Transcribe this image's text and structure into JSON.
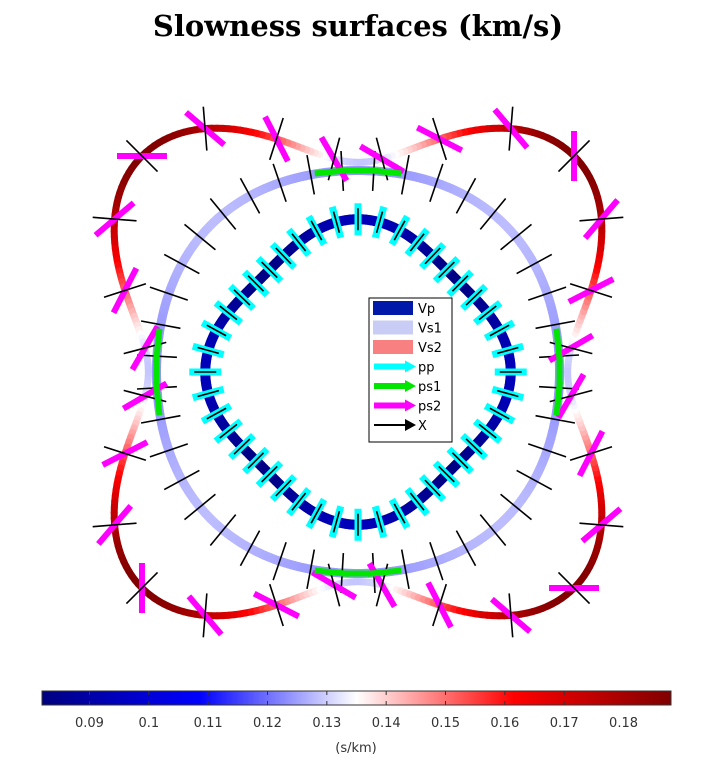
{
  "chart_data": {
    "type": "polar-slowness-surfaces",
    "title": "Slowness surfaces (km/s)",
    "series": [
      {
        "name": "Vp",
        "legend_color": "#0019a8"
      },
      {
        "name": "Vs1",
        "legend_color": "#c9cdf6"
      },
      {
        "name": "Vs2",
        "legend_color": "#f98080"
      },
      {
        "name": "pp",
        "legend_color": "#00ffff"
      },
      {
        "name": "ps1",
        "legend_color": "#00e600"
      },
      {
        "name": "ps2",
        "legend_color": "#ff00ff"
      },
      {
        "name": "X",
        "legend_color": "#000000"
      }
    ],
    "colorbar": {
      "label": "(s/km)",
      "range": [
        0.082,
        0.188
      ],
      "ticks": [
        0.09,
        0.1,
        0.11,
        0.12,
        0.13,
        0.14,
        0.15,
        0.16,
        0.17,
        0.18
      ],
      "tick_labels": [
        "0.09",
        "0.1",
        "0.11",
        "0.12",
        "0.13",
        "0.14",
        "0.15",
        "0.16",
        "0.17",
        "0.18"
      ],
      "colormap": [
        "#000080",
        "#0000ff",
        "#ffffff",
        "#ff0000",
        "#800000"
      ]
    },
    "surfaces": {
      "Vp": {
        "slowness_axis": 0.094,
        "slowness_diagonal": 0.083
      },
      "Vs1": {
        "slowness_axis": 0.124,
        "slowness_diagonal": 0.128
      },
      "Vs2": {
        "slowness_axis": 0.129,
        "slowness_diagonal": 0.188
      }
    }
  }
}
